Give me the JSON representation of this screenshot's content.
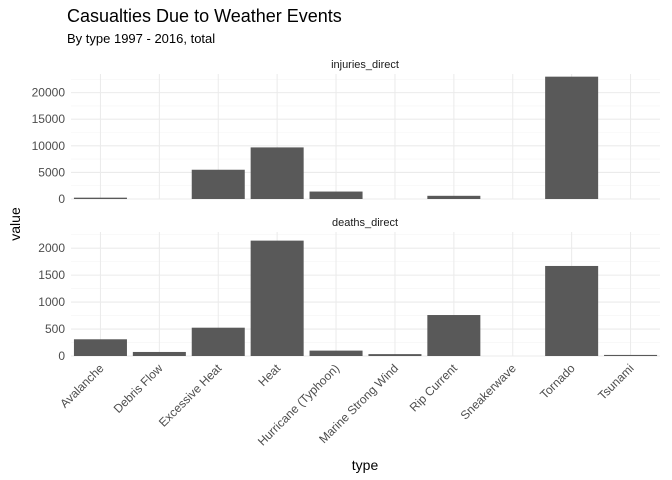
{
  "chart_data": {
    "type": "bar",
    "title": "Casualties Due to Weather Events",
    "subtitle": "By type 1997 - 2016, total",
    "xlabel": "type",
    "ylabel": "value",
    "categories": [
      "Avalanche",
      "Debris Flow",
      "Excessive Heat",
      "Heat",
      "Hurricane (Typhoon)",
      "Marine Strong Wind",
      "Rip Current",
      "Sneakerwave",
      "Tornado",
      "Tsunami"
    ],
    "facets": [
      {
        "name": "injuries_direct",
        "values": [
          250,
          0,
          5500,
          9700,
          1400,
          0,
          600,
          0,
          23000,
          0
        ],
        "ylim": [
          0,
          23500
        ],
        "yticks": [
          0,
          5000,
          10000,
          15000,
          20000
        ]
      },
      {
        "name": "deaths_direct",
        "values": [
          310,
          75,
          525,
          2140,
          100,
          35,
          760,
          0,
          1670,
          20
        ],
        "ylim": [
          0,
          2300
        ],
        "yticks": [
          0,
          500,
          1000,
          1500,
          2000
        ]
      }
    ],
    "grid": true,
    "legend": "none",
    "colors": {
      "bar": "#595959",
      "grid": "#ebebeb"
    }
  }
}
